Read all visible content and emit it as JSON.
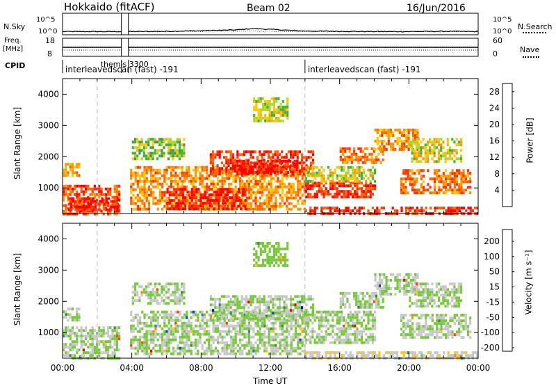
{
  "header": {
    "station": "Hokkaido (fitACF)",
    "beam": "Beam 02",
    "date": "16/Jun/2016"
  },
  "top_panels": {
    "nsky_label": "N.Sky",
    "nsky_ticks": [
      "10^5",
      "10^0"
    ],
    "nsearch_label": "N.Search",
    "nsearch_ticks": [
      "10^5",
      "10^0"
    ],
    "freq_label": "Freq.",
    "freq_unit": "[MHz]",
    "freq_ticks": [
      "18",
      "8"
    ],
    "nave_label": "Nave",
    "nave_ticks": [
      "60",
      "0"
    ],
    "cpid_label": "CPID",
    "cpid_segments": [
      {
        "start": 0.0,
        "end": 14.0,
        "label": "interleavedscan (fast) -191"
      },
      {
        "start": 3.4,
        "end": 3.8,
        "label": "themis 3300"
      },
      {
        "start": 14.0,
        "end": 24.0,
        "label": "interleavedscan (fast) -191"
      }
    ]
  },
  "axes": {
    "xlabel": "Time UT",
    "xticks": [
      "00:00",
      "04:00",
      "08:00",
      "12:00",
      "16:00",
      "20:00",
      "00:00"
    ],
    "ylabel": "Slant Range [km]",
    "yticks": [
      "1000",
      "2000",
      "3000",
      "4000"
    ]
  },
  "power_colorbar": {
    "label": "Power [dB]",
    "ticks": [
      "28",
      "24",
      "20",
      "16",
      "12",
      "8",
      "4"
    ],
    "colors": [
      "#0000ff",
      "#2e4da8",
      "#5a8a4a",
      "#3cb43c",
      "#b4d22a",
      "#ffc800",
      "#ff9600",
      "#ff6400",
      "#ff3200",
      "#ff0000"
    ]
  },
  "velocity_colorbar": {
    "label": "Velocity [m s⁻¹]",
    "ticks": [
      "200",
      "100",
      "50",
      "15",
      "-15",
      "-50",
      "-100",
      "-200"
    ],
    "colors": [
      "#ff0000",
      "#ff4600",
      "#ff8c00",
      "#ffc800",
      "#c8c8c8",
      "#78c83c",
      "#3c8c3c",
      "#2a7ab4",
      "#1e3cb4",
      "#0000c8"
    ]
  },
  "chart_data": [
    {
      "type": "line",
      "title": "N.Sky / N.Search",
      "x": [
        0,
        2,
        4,
        6,
        8,
        10,
        11,
        12,
        13,
        14,
        16,
        18,
        20,
        22,
        24
      ],
      "series": [
        {
          "name": "N.Sky",
          "values": [
            0.4,
            0.4,
            0.4,
            0.5,
            0.7,
            1.0,
            1.5,
            1.2,
            0.9,
            0.6,
            0.5,
            0.4,
            0.4,
            0.5,
            0.4
          ]
        },
        {
          "name": "N.Search",
          "values": [
            0.4,
            0.4,
            0.4,
            0.4,
            0.5,
            0.6,
            0.6,
            0.5,
            0.5,
            0.4,
            0.4,
            0.4,
            0.4,
            0.4,
            0.4
          ]
        }
      ],
      "gap": [
        3.4,
        3.8
      ]
    },
    {
      "type": "line",
      "title": "Freq. / Nave",
      "x": [
        0,
        24
      ],
      "series": [
        {
          "name": "Freq.",
          "values": [
            10.5,
            10.5
          ]
        },
        {
          "name": "Nave",
          "values": [
            16,
            16
          ]
        }
      ],
      "gap": [
        3.4,
        3.8
      ]
    },
    {
      "type": "heatmap",
      "title": "Power",
      "xlabel": "Time UT",
      "ylabel": "Slant Range [km]",
      "xlim": [
        0,
        24
      ],
      "ylim": [
        180,
        4500
      ],
      "clim": [
        0,
        30
      ],
      "gap": [
        3.4,
        3.8
      ],
      "regions": [
        {
          "t": [
            0.0,
            3.3
          ],
          "r": [
            200,
            1100
          ],
          "v": 24
        },
        {
          "t": [
            0.0,
            1.0
          ],
          "r": [
            1400,
            1800
          ],
          "v": 18
        },
        {
          "t": [
            0.3,
            3.2
          ],
          "r": [
            300,
            700
          ],
          "v": 28
        },
        {
          "t": [
            3.9,
            14.0
          ],
          "r": [
            300,
            1700
          ],
          "v": 20
        },
        {
          "t": [
            6.0,
            10.5
          ],
          "r": [
            300,
            1000
          ],
          "v": 28
        },
        {
          "t": [
            8.5,
            14.5
          ],
          "r": [
            1400,
            2200
          ],
          "v": 26
        },
        {
          "t": [
            10.0,
            13.5
          ],
          "r": [
            1500,
            1900
          ],
          "v": 28
        },
        {
          "t": [
            14.0,
            18.0
          ],
          "r": [
            700,
            1200
          ],
          "v": 26
        },
        {
          "t": [
            14.0,
            18.0
          ],
          "r": [
            1200,
            1700
          ],
          "v": 15
        },
        {
          "t": [
            16.0,
            18.5
          ],
          "r": [
            1800,
            2300
          ],
          "v": 22
        },
        {
          "t": [
            18.0,
            20.5
          ],
          "r": [
            2200,
            2900
          ],
          "v": 20
        },
        {
          "t": [
            19.5,
            23.5
          ],
          "r": [
            800,
            1600
          ],
          "v": 22
        },
        {
          "t": [
            20.0,
            23.0
          ],
          "r": [
            1800,
            2600
          ],
          "v": 16
        },
        {
          "t": [
            14.0,
            24.0
          ],
          "r": [
            200,
            400
          ],
          "v": 26
        },
        {
          "t": [
            4.0,
            7.0
          ],
          "r": [
            1900,
            2600
          ],
          "v": 12
        },
        {
          "t": [
            11.0,
            13.0
          ],
          "r": [
            3100,
            3900
          ],
          "v": 14
        }
      ]
    },
    {
      "type": "heatmap",
      "title": "Velocity",
      "xlabel": "Time UT",
      "ylabel": "Slant Range [km]",
      "xlim": [
        0,
        24
      ],
      "ylim": [
        180,
        4500
      ],
      "clim": [
        -250,
        250
      ],
      "gap": [
        3.4,
        3.8
      ],
      "regions": [
        {
          "t": [
            0.0,
            3.3
          ],
          "r": [
            200,
            1200
          ],
          "v": 0
        },
        {
          "t": [
            0.0,
            1.0
          ],
          "r": [
            1400,
            1800
          ],
          "v": 0
        },
        {
          "t": [
            3.9,
            14.0
          ],
          "r": [
            300,
            1700
          ],
          "v": 0
        },
        {
          "t": [
            8.5,
            14.5
          ],
          "r": [
            1400,
            2200
          ],
          "v": 0
        },
        {
          "t": [
            14.0,
            18.0
          ],
          "r": [
            700,
            1700
          ],
          "v": 0
        },
        {
          "t": [
            18.0,
            20.5
          ],
          "r": [
            2200,
            2900
          ],
          "v": 0
        },
        {
          "t": [
            19.5,
            23.5
          ],
          "r": [
            800,
            1600
          ],
          "v": 0
        },
        {
          "t": [
            20.0,
            23.0
          ],
          "r": [
            1800,
            2600
          ],
          "v": 0
        },
        {
          "t": [
            14.0,
            24.0
          ],
          "r": [
            200,
            400
          ],
          "v": -40
        },
        {
          "t": [
            16.0,
            18.5
          ],
          "r": [
            1800,
            2300
          ],
          "v": 0
        },
        {
          "t": [
            4.0,
            7.0
          ],
          "r": [
            1900,
            2600
          ],
          "v": 0
        },
        {
          "t": [
            11.0,
            13.0
          ],
          "r": [
            3100,
            3900
          ],
          "v": 30
        }
      ]
    }
  ]
}
